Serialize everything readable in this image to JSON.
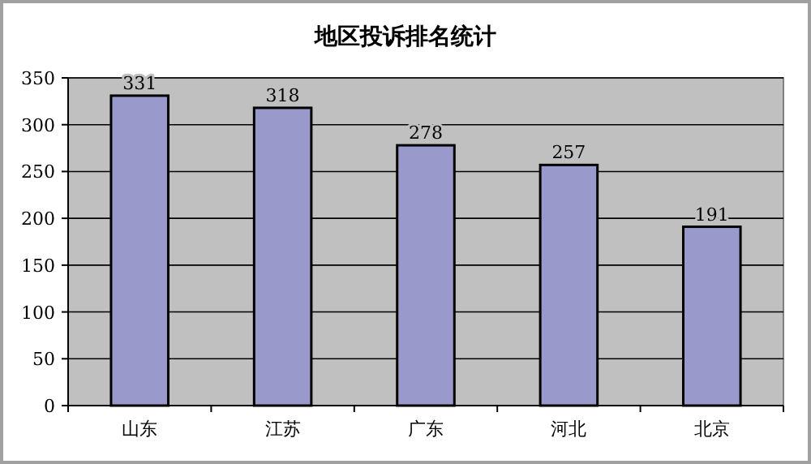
{
  "chart_data": {
    "type": "bar",
    "title": "地区投诉排名统计",
    "categories": [
      "山东",
      "江苏",
      "广东",
      "河北",
      "北京"
    ],
    "values": [
      331,
      318,
      278,
      257,
      191
    ],
    "color": "#9999cc",
    "ylim": [
      0,
      350
    ],
    "yticks": [
      0,
      50,
      100,
      150,
      200,
      250,
      300,
      350
    ],
    "grid": "y",
    "data_labels": true
  }
}
